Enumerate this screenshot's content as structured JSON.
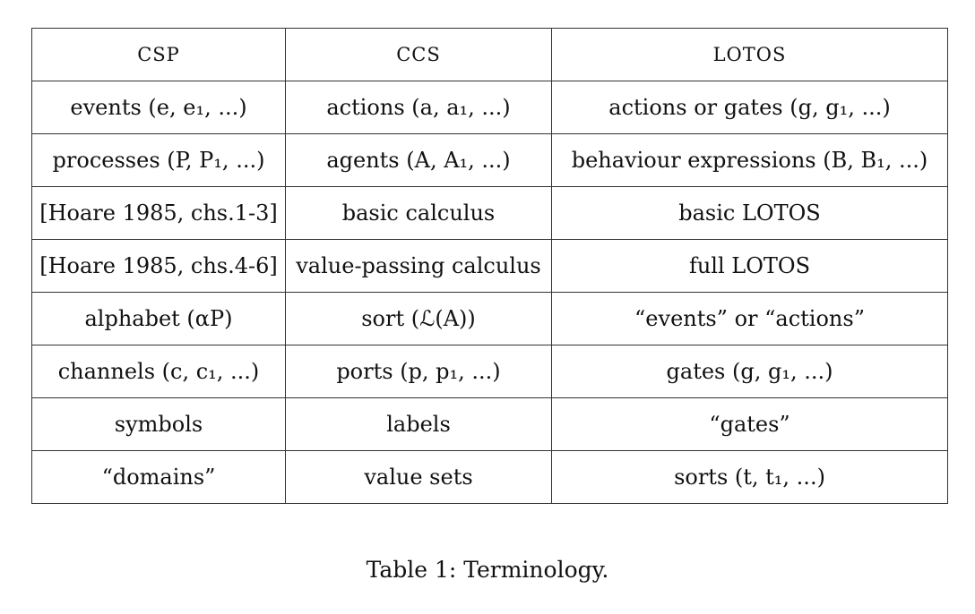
{
  "table": {
    "headers": [
      "CSP",
      "CCS",
      "LOTOS"
    ],
    "rows": [
      [
        "events (e, e₁, ...)",
        "actions (a, a₁, ...)",
        "actions or gates (g, g₁, ...)"
      ],
      [
        "processes (P, P₁, ...)",
        "agents (A, A₁, ...)",
        "behaviour expressions (B, B₁, ...)"
      ],
      [
        "[Hoare 1985, chs.1-3]",
        "basic calculus",
        "basic LOTOS"
      ],
      [
        "[Hoare 1985, chs.4-6]",
        "value-passing calculus",
        "full LOTOS"
      ],
      [
        "alphabet (αP)",
        "sort (ℒ(A))",
        "“events” or “actions”"
      ],
      [
        "channels (c, c₁, ...)",
        "ports (p, p₁, ...)",
        "gates (g, g₁, ...)"
      ],
      [
        "symbols",
        "labels",
        "“gates”"
      ],
      [
        "“domains”",
        "value sets",
        "sorts (t, t₁, ...)"
      ]
    ]
  },
  "caption": "Table 1: Terminology."
}
